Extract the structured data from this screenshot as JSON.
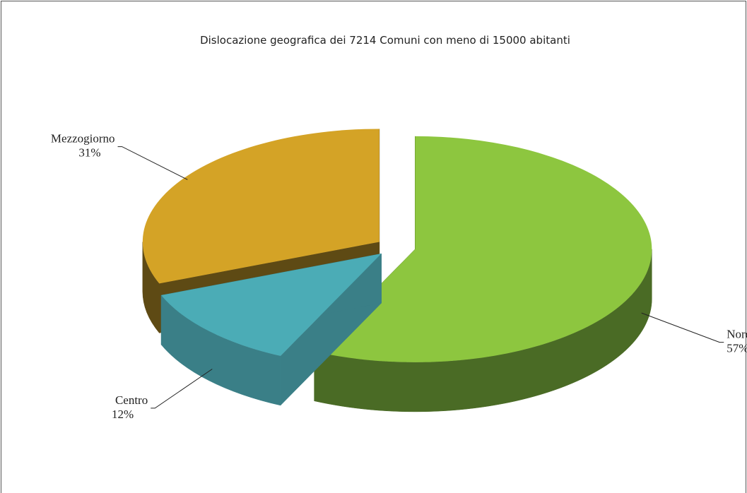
{
  "chart_data": {
    "type": "pie",
    "title": "Dislocazione geografica dei 7214 Comuni con meno di 15000 abitanti",
    "categories": [
      "Nord",
      "Centro",
      "Mezzogiorno"
    ],
    "values": [
      57,
      12,
      31
    ],
    "value_labels": [
      "57%",
      "12%",
      "31%"
    ],
    "colors": [
      "#8dc63f",
      "#4bacb6",
      "#d4a326"
    ],
    "side_colors": [
      "#4a6b25",
      "#3a7f87",
      "#5e4a14"
    ]
  }
}
